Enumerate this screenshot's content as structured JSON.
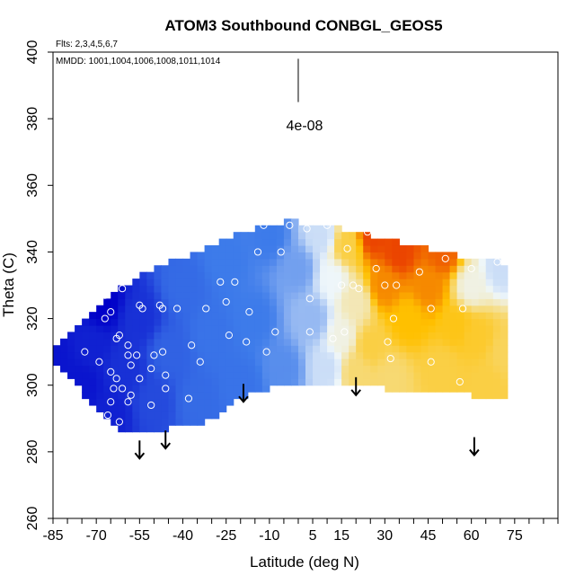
{
  "chart_data": {
    "type": "heatmap",
    "title": "ATOM3 Southbound CONBGL_GEOS5",
    "annotations": {
      "flights": "Flts: 2,3,4,5,6,7",
      "dates": "MMDD: 1001,1004,1006,1008,1011,1014",
      "scale_label": "4e-08"
    },
    "xlabel": "Latitude (deg N)",
    "ylabel": "Theta (C)",
    "xlim": [
      -85,
      90
    ],
    "ylim": [
      260,
      400
    ],
    "x_tick_labels": [
      "-85",
      "-70",
      "-55",
      "-40",
      "-25",
      "-10",
      "5",
      "15",
      "30",
      "45",
      "60",
      "75"
    ],
    "y_tick_labels": [
      "260",
      "280",
      "300",
      "320",
      "340",
      "360",
      "380",
      "400"
    ],
    "colors": {
      "low": "#0000c8",
      "mid_low": "#3d7bea",
      "mid": "#eef6fa",
      "mid_high": "#ffc000",
      "high": "#e00000"
    },
    "envelope": {
      "lat": [
        -85,
        -80,
        -75,
        -70,
        -65,
        -60,
        -55,
        -50,
        -45,
        -40,
        -35,
        -30,
        -25,
        -20,
        -15,
        -10,
        -5,
        0,
        5,
        10,
        15,
        20,
        25,
        30,
        35,
        40,
        45,
        50,
        55,
        60,
        65,
        70,
        72
      ],
      "bottom": [
        307,
        303,
        298,
        293,
        288,
        286,
        286,
        286,
        287,
        288,
        288,
        290,
        293,
        296,
        298,
        299,
        300,
        301,
        300,
        300,
        301,
        301,
        300,
        299,
        299,
        298,
        298,
        298,
        298,
        297,
        297,
        297,
        297
      ],
      "top": [
        310,
        314,
        318,
        323,
        327,
        330,
        333,
        335,
        337,
        338,
        340,
        342,
        344,
        346,
        347,
        348,
        349,
        349,
        348,
        347,
        347,
        346,
        345,
        344,
        343,
        342,
        341,
        340,
        339,
        338,
        337,
        337,
        336
      ]
    },
    "field_points": [
      {
        "lat": -85,
        "theta": 308,
        "value": 0.05
      },
      {
        "lat": -75,
        "theta": 300,
        "value": 0.05
      },
      {
        "lat": -72,
        "theta": 312,
        "value": 0.08
      },
      {
        "lat": -68,
        "theta": 325,
        "value": 0.0
      },
      {
        "lat": -65,
        "theta": 292,
        "value": 0.08
      },
      {
        "lat": -60,
        "theta": 305,
        "value": 0.12
      },
      {
        "lat": -55,
        "theta": 320,
        "value": 0.12
      },
      {
        "lat": -50,
        "theta": 295,
        "value": 0.18
      },
      {
        "lat": -45,
        "theta": 310,
        "value": 0.24
      },
      {
        "lat": -40,
        "theta": 330,
        "value": 0.26
      },
      {
        "lat": -35,
        "theta": 295,
        "value": 0.26
      },
      {
        "lat": -30,
        "theta": 315,
        "value": 0.28
      },
      {
        "lat": -25,
        "theta": 338,
        "value": 0.3
      },
      {
        "lat": -20,
        "theta": 300,
        "value": 0.28
      },
      {
        "lat": -15,
        "theta": 320,
        "value": 0.3
      },
      {
        "lat": -10,
        "theta": 345,
        "value": 0.3
      },
      {
        "lat": -5,
        "theta": 305,
        "value": 0.33
      },
      {
        "lat": 0,
        "theta": 335,
        "value": 0.36
      },
      {
        "lat": 5,
        "theta": 320,
        "value": 0.4
      },
      {
        "lat": 8,
        "theta": 345,
        "value": 0.46
      },
      {
        "lat": 10,
        "theta": 305,
        "value": 0.46
      },
      {
        "lat": 12,
        "theta": 332,
        "value": 0.5
      },
      {
        "lat": 15,
        "theta": 315,
        "value": 0.52
      },
      {
        "lat": 17,
        "theta": 342,
        "value": 0.66
      },
      {
        "lat": 20,
        "theta": 304,
        "value": 0.62
      },
      {
        "lat": 20,
        "theta": 325,
        "value": 0.56
      },
      {
        "lat": 25,
        "theta": 312,
        "value": 0.66
      },
      {
        "lat": 26,
        "theta": 345,
        "value": 0.9
      },
      {
        "lat": 30,
        "theta": 330,
        "value": 0.8
      },
      {
        "lat": 32,
        "theta": 302,
        "value": 0.62
      },
      {
        "lat": 35,
        "theta": 340,
        "value": 0.9
      },
      {
        "lat": 38,
        "theta": 320,
        "value": 0.72
      },
      {
        "lat": 45,
        "theta": 330,
        "value": 0.8
      },
      {
        "lat": 50,
        "theta": 340,
        "value": 0.86
      },
      {
        "lat": 50,
        "theta": 305,
        "value": 0.66
      },
      {
        "lat": 55,
        "theta": 318,
        "value": 0.7
      },
      {
        "lat": 60,
        "theta": 330,
        "value": 0.52
      },
      {
        "lat": 62,
        "theta": 315,
        "value": 0.68
      },
      {
        "lat": 65,
        "theta": 300,
        "value": 0.66
      },
      {
        "lat": 70,
        "theta": 335,
        "value": 0.46
      },
      {
        "lat": 72,
        "theta": 310,
        "value": 0.64
      }
    ],
    "sample_points": [
      {
        "lat": -67,
        "theta": 327
      },
      {
        "lat": -65,
        "theta": 322
      },
      {
        "lat": -61,
        "theta": 329
      },
      {
        "lat": -67,
        "theta": 320
      },
      {
        "lat": -62,
        "theta": 315
      },
      {
        "lat": -63,
        "theta": 314
      },
      {
        "lat": -74,
        "theta": 310
      },
      {
        "lat": -69,
        "theta": 307
      },
      {
        "lat": -59,
        "theta": 312
      },
      {
        "lat": -56,
        "theta": 309
      },
      {
        "lat": -59,
        "theta": 309
      },
      {
        "lat": -58,
        "theta": 306
      },
      {
        "lat": -65,
        "theta": 304
      },
      {
        "lat": -63,
        "theta": 302
      },
      {
        "lat": -58,
        "theta": 297
      },
      {
        "lat": -55,
        "theta": 302
      },
      {
        "lat": -51,
        "theta": 305
      },
      {
        "lat": -64,
        "theta": 299
      },
      {
        "lat": -61,
        "theta": 299
      },
      {
        "lat": -65,
        "theta": 295
      },
      {
        "lat": -59,
        "theta": 295
      },
      {
        "lat": -66,
        "theta": 291
      },
      {
        "lat": -62,
        "theta": 289
      },
      {
        "lat": -67,
        "theta": 287
      },
      {
        "lat": -51,
        "theta": 294
      },
      {
        "lat": -46,
        "theta": 299
      },
      {
        "lat": -46,
        "theta": 303
      },
      {
        "lat": -47,
        "theta": 310
      },
      {
        "lat": -50,
        "theta": 309
      },
      {
        "lat": -38,
        "theta": 296
      },
      {
        "lat": -48,
        "theta": 324
      },
      {
        "lat": -47,
        "theta": 323
      },
      {
        "lat": -42,
        "theta": 323
      },
      {
        "lat": -55,
        "theta": 324
      },
      {
        "lat": -54,
        "theta": 323
      },
      {
        "lat": -37,
        "theta": 312
      },
      {
        "lat": -32,
        "theta": 323
      },
      {
        "lat": -34,
        "theta": 307
      },
      {
        "lat": -27,
        "theta": 331
      },
      {
        "lat": -22,
        "theta": 331
      },
      {
        "lat": -25,
        "theta": 325
      },
      {
        "lat": -24,
        "theta": 315
      },
      {
        "lat": -17,
        "theta": 322
      },
      {
        "lat": -18,
        "theta": 313
      },
      {
        "lat": -14,
        "theta": 340
      },
      {
        "lat": -12,
        "theta": 348
      },
      {
        "lat": -6,
        "theta": 340
      },
      {
        "lat": -8,
        "theta": 316
      },
      {
        "lat": -11,
        "theta": 310
      },
      {
        "lat": -3,
        "theta": 348
      },
      {
        "lat": 3,
        "theta": 347
      },
      {
        "lat": 10,
        "theta": 348
      },
      {
        "lat": 4,
        "theta": 326
      },
      {
        "lat": 4,
        "theta": 316
      },
      {
        "lat": 12,
        "theta": 314
      },
      {
        "lat": 16,
        "theta": 316
      },
      {
        "lat": 15,
        "theta": 330
      },
      {
        "lat": 17,
        "theta": 341
      },
      {
        "lat": 19,
        "theta": 330
      },
      {
        "lat": 21,
        "theta": 329
      },
      {
        "lat": 24,
        "theta": 346
      },
      {
        "lat": 27,
        "theta": 335
      },
      {
        "lat": 30,
        "theta": 330
      },
      {
        "lat": 34,
        "theta": 330
      },
      {
        "lat": 33,
        "theta": 320
      },
      {
        "lat": 31,
        "theta": 313
      },
      {
        "lat": 32,
        "theta": 308
      },
      {
        "lat": 42,
        "theta": 334
      },
      {
        "lat": 46,
        "theta": 323
      },
      {
        "lat": 46,
        "theta": 307
      },
      {
        "lat": 51,
        "theta": 338
      },
      {
        "lat": 57,
        "theta": 323
      },
      {
        "lat": 56,
        "theta": 301
      },
      {
        "lat": 60,
        "theta": 335
      },
      {
        "lat": 69,
        "theta": 337
      }
    ],
    "arrows": [
      {
        "lat": -55,
        "theta": 278
      },
      {
        "lat": -46,
        "theta": 281
      },
      {
        "lat": -19,
        "theta": 295
      },
      {
        "lat": 20,
        "theta": 297
      },
      {
        "lat": 61,
        "theta": 279
      }
    ],
    "scale_bar": {
      "lat": 0,
      "theta_top": 398,
      "theta_bottom": 385
    }
  }
}
